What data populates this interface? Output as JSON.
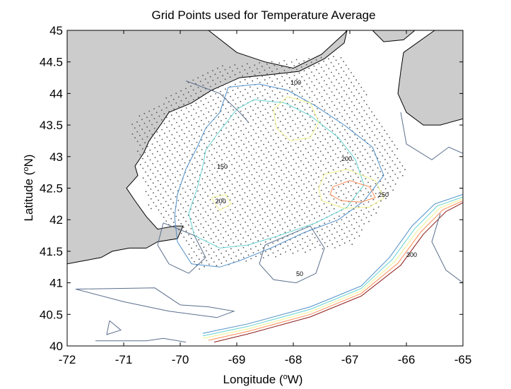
{
  "chart_data": {
    "type": "contour-map",
    "title": "Grid Points used for Temperature Average",
    "xlabel": "Longitude (",
    "xlabel_sup": "o",
    "xlabel_suffix": "W)",
    "ylabel": "Latitude (",
    "ylabel_sup": "o",
    "ylabel_suffix": "N)",
    "xlim": [
      -72,
      -65
    ],
    "ylim": [
      40,
      45
    ],
    "x_ticks": [
      -72,
      -71,
      -70,
      -69,
      -68,
      -67,
      -66,
      -65
    ],
    "y_ticks": [
      40,
      40.5,
      41,
      41.5,
      42,
      42.5,
      43,
      43.5,
      44,
      44.5,
      45
    ],
    "grid": false,
    "land_color": "#cccccc",
    "grid_point_color": "#555555",
    "grid_points": {
      "description": "regular lattice of sample points rotated roughly 30 degrees, covering the Gulf of Maine",
      "spacing_deg": 0.1,
      "rotation_deg": 30,
      "region_polygon": [
        [
          -69.75,
          41.2
        ],
        [
          -66.95,
          41.6
        ],
        [
          -65.95,
          42.8
        ],
        [
          -67.1,
          44.6
        ],
        [
          -69.4,
          44.45
        ],
        [
          -70.9,
          43.55
        ],
        [
          -70.55,
          42.2
        ],
        [
          -69.95,
          41.7
        ]
      ]
    },
    "contour_levels": [
      50,
      100,
      150,
      200,
      250,
      300
    ],
    "contour_colors": {
      "50": "#5a6e8c",
      "100": "#4f8fc8",
      "150": "#66d2d2",
      "200": "#f0f08c",
      "250": "#ff8c55",
      "300": "#8b1a1a"
    },
    "contour_labels": [
      {
        "text": "100",
        "x": -68.05,
        "y": 44.14
      },
      {
        "text": "150",
        "x": -69.35,
        "y": 42.81
      },
      {
        "text": "200",
        "x": -69.38,
        "y": 42.26
      },
      {
        "text": "200",
        "x": -67.15,
        "y": 42.93
      },
      {
        "text": "250",
        "x": -66.5,
        "y": 42.36
      },
      {
        "text": "300",
        "x": -66.0,
        "y": 41.41
      },
      {
        "text": "50",
        "x": -67.95,
        "y": 41.11
      }
    ],
    "contours": [
      {
        "level": 100,
        "points": [
          [
            -69.15,
            44.1
          ],
          [
            -68.6,
            44.15
          ],
          [
            -68.1,
            44.05
          ],
          [
            -67.6,
            43.8
          ],
          [
            -67.1,
            43.5
          ],
          [
            -66.6,
            43.15
          ],
          [
            -66.4,
            42.7
          ],
          [
            -66.75,
            42.3
          ],
          [
            -67.2,
            42.0
          ],
          [
            -67.8,
            41.8
          ],
          [
            -68.4,
            41.55
          ],
          [
            -68.95,
            41.35
          ],
          [
            -69.3,
            41.25
          ],
          [
            -69.8,
            41.3
          ],
          [
            -70.05,
            41.65
          ],
          [
            -70.1,
            42.05
          ],
          [
            -70.05,
            42.4
          ],
          [
            -69.9,
            42.8
          ],
          [
            -69.7,
            43.15
          ],
          [
            -69.55,
            43.45
          ],
          [
            -69.3,
            43.7
          ],
          [
            -69.15,
            44.1
          ]
        ]
      },
      {
        "level": 150,
        "points": [
          [
            -69.0,
            43.75
          ],
          [
            -68.7,
            43.9
          ],
          [
            -68.15,
            43.85
          ],
          [
            -67.7,
            43.65
          ],
          [
            -67.2,
            43.3
          ],
          [
            -66.9,
            42.95
          ],
          [
            -66.75,
            42.55
          ],
          [
            -67.05,
            42.2
          ],
          [
            -67.6,
            41.95
          ],
          [
            -68.25,
            41.75
          ],
          [
            -68.8,
            41.6
          ],
          [
            -69.3,
            41.55
          ],
          [
            -69.75,
            41.75
          ],
          [
            -69.85,
            42.1
          ],
          [
            -69.7,
            42.5
          ],
          [
            -69.6,
            42.85
          ],
          [
            -69.55,
            43.1
          ],
          [
            -69.35,
            43.35
          ],
          [
            -69.0,
            43.75
          ]
        ]
      },
      {
        "level": 200,
        "points": [
          [
            -68.1,
            43.95
          ],
          [
            -67.7,
            43.85
          ],
          [
            -67.55,
            43.55
          ],
          [
            -67.7,
            43.3
          ],
          [
            -68.05,
            43.25
          ],
          [
            -68.3,
            43.45
          ],
          [
            -68.35,
            43.75
          ],
          [
            -68.1,
            43.95
          ]
        ]
      },
      {
        "level": 200,
        "points": [
          [
            -69.45,
            42.35
          ],
          [
            -69.2,
            42.4
          ],
          [
            -69.1,
            42.25
          ],
          [
            -69.3,
            42.15
          ],
          [
            -69.45,
            42.35
          ]
        ]
      },
      {
        "level": 200,
        "points": [
          [
            -67.45,
            42.72
          ],
          [
            -67.05,
            42.8
          ],
          [
            -66.55,
            42.62
          ],
          [
            -66.4,
            42.35
          ],
          [
            -66.65,
            42.2
          ],
          [
            -67.1,
            42.18
          ],
          [
            -67.5,
            42.3
          ],
          [
            -67.55,
            42.5
          ],
          [
            -67.45,
            42.72
          ]
        ]
      },
      {
        "level": 250,
        "points": [
          [
            -67.3,
            42.52
          ],
          [
            -67.0,
            42.62
          ],
          [
            -66.65,
            42.52
          ],
          [
            -66.55,
            42.35
          ],
          [
            -66.8,
            42.28
          ],
          [
            -67.15,
            42.3
          ],
          [
            -67.35,
            42.4
          ],
          [
            -67.3,
            42.52
          ]
        ]
      },
      {
        "level": 50,
        "points": [
          [
            -68.5,
            41.6
          ],
          [
            -67.7,
            41.9
          ],
          [
            -67.45,
            41.55
          ],
          [
            -67.6,
            41.15
          ],
          [
            -67.95,
            41.0
          ],
          [
            -68.35,
            41.05
          ],
          [
            -68.6,
            41.3
          ],
          [
            -68.5,
            41.6
          ]
        ]
      },
      {
        "level": 50,
        "points": [
          [
            -70.3,
            41.95
          ],
          [
            -69.75,
            41.75
          ],
          [
            -69.55,
            41.4
          ],
          [
            -69.85,
            41.15
          ],
          [
            -70.2,
            41.3
          ],
          [
            -70.4,
            41.6
          ],
          [
            -70.3,
            41.95
          ]
        ]
      },
      {
        "level": 50,
        "points": [
          [
            -71.85,
            40.9
          ],
          [
            -70.45,
            40.92
          ],
          [
            -70.0,
            40.65
          ],
          [
            -69.5,
            40.62
          ],
          [
            -69.05,
            40.55
          ],
          [
            -69.35,
            40.45
          ],
          [
            -70.2,
            40.55
          ],
          [
            -71.0,
            40.7
          ],
          [
            -71.85,
            40.9
          ]
        ]
      },
      {
        "level": 100,
        "points": [
          [
            -69.6,
            40.2
          ],
          [
            -68.8,
            40.35
          ],
          [
            -67.7,
            40.62
          ],
          [
            -66.8,
            40.95
          ],
          [
            -66.3,
            41.4
          ],
          [
            -65.9,
            41.9
          ],
          [
            -65.5,
            42.25
          ],
          [
            -65.0,
            42.4
          ]
        ]
      },
      {
        "level": 150,
        "points": [
          [
            -69.6,
            40.16
          ],
          [
            -68.8,
            40.31
          ],
          [
            -67.7,
            40.58
          ],
          [
            -66.8,
            40.91
          ],
          [
            -66.25,
            41.37
          ],
          [
            -65.85,
            41.86
          ],
          [
            -65.45,
            42.22
          ],
          [
            -65.0,
            42.36
          ]
        ]
      },
      {
        "level": 200,
        "points": [
          [
            -69.6,
            40.12
          ],
          [
            -68.8,
            40.27
          ],
          [
            -67.7,
            40.54
          ],
          [
            -66.8,
            40.87
          ],
          [
            -66.2,
            41.34
          ],
          [
            -65.8,
            41.83
          ],
          [
            -65.4,
            42.19
          ],
          [
            -65.0,
            42.33
          ]
        ]
      },
      {
        "level": 250,
        "points": [
          [
            -69.5,
            40.09
          ],
          [
            -68.8,
            40.23
          ],
          [
            -67.7,
            40.5
          ],
          [
            -66.8,
            40.83
          ],
          [
            -66.15,
            41.31
          ],
          [
            -65.75,
            41.8
          ],
          [
            -65.35,
            42.16
          ],
          [
            -65.0,
            42.3
          ]
        ]
      },
      {
        "level": 300,
        "points": [
          [
            -69.4,
            40.06
          ],
          [
            -68.8,
            40.19
          ],
          [
            -67.7,
            40.46
          ],
          [
            -66.8,
            40.79
          ],
          [
            -66.1,
            41.28
          ],
          [
            -65.7,
            41.77
          ],
          [
            -65.3,
            42.13
          ],
          [
            -65.0,
            42.27
          ]
        ]
      },
      {
        "level": 50,
        "points": [
          [
            -65.4,
            42.1
          ],
          [
            -65.55,
            41.65
          ],
          [
            -65.3,
            41.2
          ],
          [
            -65.0,
            41.0
          ]
        ]
      },
      {
        "level": 50,
        "points": [
          [
            -66.1,
            43.7
          ],
          [
            -66.0,
            43.2
          ],
          [
            -65.55,
            42.95
          ],
          [
            -65.25,
            43.15
          ],
          [
            -65.0,
            43.05
          ]
        ]
      },
      {
        "level": 50,
        "points": [
          [
            -69.9,
            44.2
          ],
          [
            -69.3,
            44.0
          ],
          [
            -68.95,
            43.7
          ],
          [
            -68.8,
            43.55
          ]
        ]
      },
      {
        "level": 50,
        "points": [
          [
            -71.25,
            40.4
          ],
          [
            -71.05,
            40.25
          ],
          [
            -71.3,
            40.18
          ],
          [
            -71.25,
            40.4
          ]
        ]
      },
      {
        "level": 50,
        "points": [
          [
            -71.5,
            40.08
          ],
          [
            -70.6,
            40.08
          ],
          [
            -70.3,
            40.12
          ],
          [
            -69.9,
            40.06
          ]
        ]
      }
    ],
    "land": [
      {
        "name": "new-england-coast",
        "points": [
          [
            -72.0,
            45.0
          ],
          [
            -69.5,
            45.0
          ],
          [
            -69.0,
            44.65
          ],
          [
            -68.5,
            44.5
          ],
          [
            -68.0,
            44.4
          ],
          [
            -67.5,
            44.62
          ],
          [
            -67.1,
            44.95
          ],
          [
            -67.05,
            45.0
          ],
          [
            -67.1,
            44.8
          ],
          [
            -67.45,
            44.55
          ],
          [
            -67.9,
            44.35
          ],
          [
            -68.4,
            44.3
          ],
          [
            -68.95,
            44.25
          ],
          [
            -69.45,
            44.05
          ],
          [
            -69.8,
            43.85
          ],
          [
            -70.2,
            43.7
          ],
          [
            -70.35,
            43.5
          ],
          [
            -70.55,
            43.25
          ],
          [
            -70.65,
            43.05
          ],
          [
            -70.8,
            42.85
          ],
          [
            -70.75,
            42.7
          ],
          [
            -70.95,
            42.5
          ],
          [
            -70.8,
            42.3
          ],
          [
            -70.6,
            42.05
          ],
          [
            -70.4,
            41.85
          ],
          [
            -70.1,
            41.9
          ],
          [
            -69.95,
            41.9
          ],
          [
            -70.05,
            41.7
          ],
          [
            -70.4,
            41.65
          ],
          [
            -70.6,
            41.55
          ],
          [
            -70.9,
            41.55
          ],
          [
            -71.2,
            41.5
          ],
          [
            -71.4,
            41.4
          ],
          [
            -71.7,
            41.35
          ],
          [
            -72.0,
            41.3
          ]
        ]
      },
      {
        "name": "nova-scotia",
        "points": [
          [
            -66.05,
            44.65
          ],
          [
            -65.5,
            45.0
          ],
          [
            -65.0,
            45.0
          ],
          [
            -65.0,
            43.6
          ],
          [
            -65.4,
            43.5
          ],
          [
            -65.7,
            43.5
          ],
          [
            -66.0,
            43.7
          ],
          [
            -66.15,
            44.0
          ],
          [
            -66.1,
            44.35
          ],
          [
            -66.05,
            44.65
          ]
        ]
      },
      {
        "name": "new-brunswick",
        "points": [
          [
            -66.6,
            45.0
          ],
          [
            -65.85,
            45.0
          ],
          [
            -66.05,
            44.85
          ],
          [
            -66.4,
            44.82
          ],
          [
            -66.6,
            45.0
          ]
        ]
      }
    ]
  }
}
